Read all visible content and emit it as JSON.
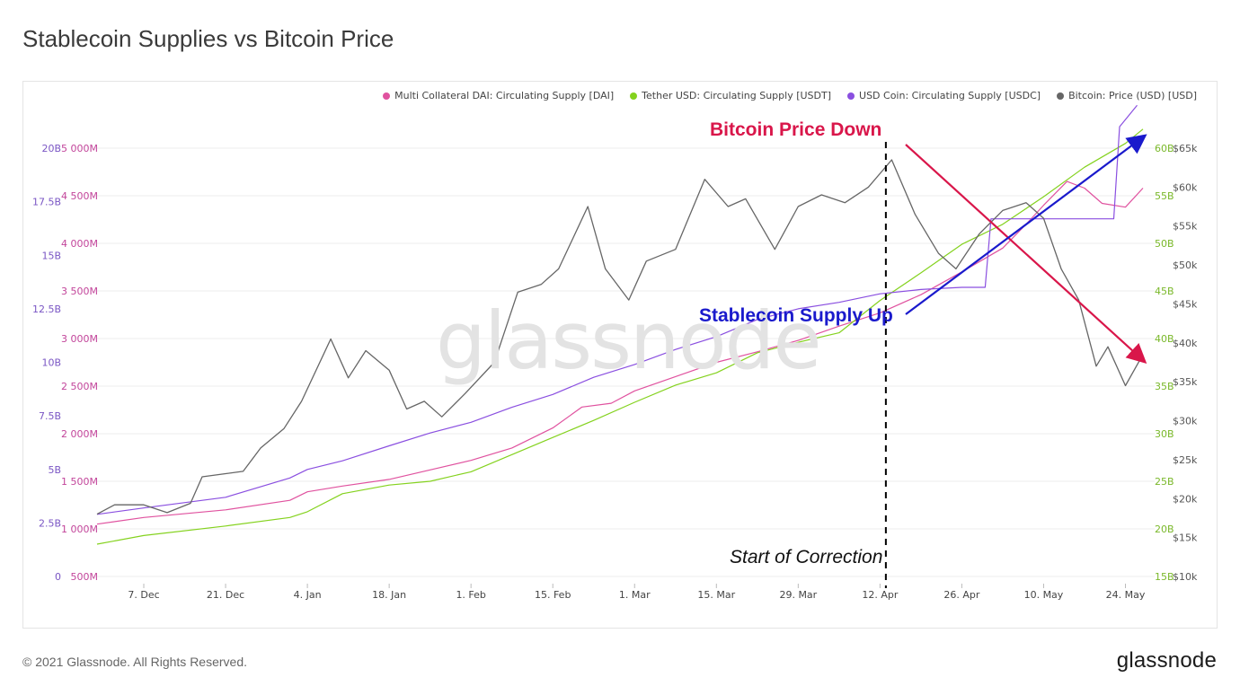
{
  "page": {
    "title": "Stablecoin Supplies vs Bitcoin Price",
    "copyright": "© 2021 Glassnode. All Rights Reserved.",
    "logo": "glassnode",
    "watermark": "glassnode"
  },
  "annotations": {
    "price_down": "Bitcoin Price Down",
    "supply_up": "Stablecoin Supply Up",
    "correction": "Start of Correction"
  },
  "chart_data": {
    "type": "line",
    "legend_placement": "top-right",
    "grid": true,
    "x_ticks": [
      "7. Dec",
      "21. Dec",
      "4. Jan",
      "18. Jan",
      "1. Feb",
      "15. Feb",
      "1. Mar",
      "15. Mar",
      "29. Mar",
      "12. Apr",
      "26. Apr",
      "10. May",
      "24. May"
    ],
    "x_range": [
      "2020-11-29",
      "2021-05-29"
    ],
    "axes": {
      "usdc": {
        "ticks": [
          "0",
          "2.5B",
          "5B",
          "7.5B",
          "10B",
          "12.5B",
          "15B",
          "17.5B",
          "20B"
        ],
        "range": [
          0,
          20
        ],
        "color": "#7a56c4"
      },
      "dai": {
        "ticks": [
          "500M",
          "1 000M",
          "1 500M",
          "2 000M",
          "2 500M",
          "3 000M",
          "3 500M",
          "4 000M",
          "4 500M",
          "5 000M"
        ],
        "range": [
          500,
          5000
        ],
        "color": "#c2449a"
      },
      "usdt": {
        "ticks": [
          "15B",
          "20B",
          "25B",
          "30B",
          "35B",
          "40B",
          "45B",
          "50B",
          "55B",
          "60B"
        ],
        "range": [
          15,
          60
        ],
        "color": "#7ab82a"
      },
      "btc": {
        "ticks": [
          "$10k",
          "$15k",
          "$20k",
          "$25k",
          "$30k",
          "$35k",
          "$40k",
          "$45k",
          "$50k",
          "$55k",
          "$60k",
          "$65k"
        ],
        "range": [
          10,
          65
        ],
        "color": "#555555"
      }
    },
    "series": [
      {
        "name": "Multi Collateral DAI: Circulating Supply [DAI]",
        "color": "#e0529f",
        "axis": "dai",
        "x": [
          "2020-11-29",
          "2020-12-07",
          "2020-12-21",
          "2021-01-01",
          "2021-01-04",
          "2021-01-10",
          "2021-01-18",
          "2021-01-25",
          "2021-02-01",
          "2021-02-08",
          "2021-02-15",
          "2021-02-20",
          "2021-02-25",
          "2021-03-01",
          "2021-03-08",
          "2021-03-15",
          "2021-03-22",
          "2021-03-29",
          "2021-04-05",
          "2021-04-12",
          "2021-04-19",
          "2021-04-26",
          "2021-05-03",
          "2021-05-07",
          "2021-05-10",
          "2021-05-14",
          "2021-05-17",
          "2021-05-20",
          "2021-05-24",
          "2021-05-27"
        ],
        "values": [
          1050,
          1120,
          1200,
          1300,
          1390,
          1450,
          1520,
          1620,
          1720,
          1850,
          2060,
          2280,
          2320,
          2450,
          2600,
          2750,
          2860,
          2980,
          3130,
          3270,
          3460,
          3700,
          3950,
          4200,
          4400,
          4650,
          4580,
          4420,
          4380,
          4580
        ]
      },
      {
        "name": "Tether USD: Circulating Supply [USDT]",
        "color": "#84d21e",
        "axis": "usdt",
        "x": [
          "2020-11-29",
          "2020-12-07",
          "2020-12-21",
          "2021-01-01",
          "2021-01-04",
          "2021-01-10",
          "2021-01-18",
          "2021-01-25",
          "2021-02-01",
          "2021-02-08",
          "2021-02-15",
          "2021-02-22",
          "2021-03-01",
          "2021-03-08",
          "2021-03-15",
          "2021-03-22",
          "2021-03-29",
          "2021-04-05",
          "2021-04-12",
          "2021-04-19",
          "2021-04-26",
          "2021-05-03",
          "2021-05-10",
          "2021-05-17",
          "2021-05-24",
          "2021-05-27"
        ],
        "values": [
          18.4,
          19.3,
          20.3,
          21.2,
          21.8,
          23.7,
          24.6,
          25.0,
          26.0,
          27.8,
          29.6,
          31.4,
          33.3,
          35.1,
          36.4,
          38.5,
          39.6,
          40.6,
          44.0,
          46.9,
          49.9,
          52.0,
          54.9,
          58.0,
          60.5,
          62.0
        ]
      },
      {
        "name": "USD Coin: Circulating Supply [USDC]",
        "color": "#8a4fe0",
        "axis": "usdc",
        "x": [
          "2020-11-29",
          "2020-12-07",
          "2020-12-21",
          "2021-01-01",
          "2021-01-04",
          "2021-01-10",
          "2021-01-18",
          "2021-01-25",
          "2021-02-01",
          "2021-02-08",
          "2021-02-15",
          "2021-02-22",
          "2021-03-01",
          "2021-03-08",
          "2021-03-15",
          "2021-03-22",
          "2021-03-29",
          "2021-04-05",
          "2021-04-12",
          "2021-04-19",
          "2021-04-26",
          "2021-04-30",
          "2021-05-01",
          "2021-05-10",
          "2021-05-17",
          "2021-05-22",
          "2021-05-23",
          "2021-05-26"
        ],
        "values": [
          2.9,
          3.2,
          3.7,
          4.6,
          5.0,
          5.4,
          6.1,
          6.7,
          7.2,
          7.9,
          8.5,
          9.3,
          9.9,
          10.6,
          11.2,
          12.0,
          12.5,
          12.8,
          13.2,
          13.4,
          13.5,
          13.5,
          16.7,
          16.7,
          16.7,
          16.7,
          21.0,
          22.0
        ]
      },
      {
        "name": "Bitcoin: Price (USD) [USD]",
        "color": "#666666",
        "axis": "btc",
        "x": [
          "2020-11-29",
          "2020-12-02",
          "2020-12-07",
          "2020-12-11",
          "2020-12-15",
          "2020-12-17",
          "2020-12-21",
          "2020-12-24",
          "2020-12-27",
          "2020-12-31",
          "2021-01-03",
          "2021-01-08",
          "2021-01-11",
          "2021-01-14",
          "2021-01-18",
          "2021-01-21",
          "2021-01-24",
          "2021-01-27",
          "2021-01-31",
          "2021-02-05",
          "2021-02-09",
          "2021-02-13",
          "2021-02-16",
          "2021-02-21",
          "2021-02-24",
          "2021-02-28",
          "2021-03-03",
          "2021-03-08",
          "2021-03-13",
          "2021-03-17",
          "2021-03-20",
          "2021-03-25",
          "2021-03-29",
          "2021-04-02",
          "2021-04-06",
          "2021-04-10",
          "2021-04-14",
          "2021-04-18",
          "2021-04-22",
          "2021-04-25",
          "2021-04-29",
          "2021-05-03",
          "2021-05-07",
          "2021-05-10",
          "2021-05-13",
          "2021-05-16",
          "2021-05-19",
          "2021-05-21",
          "2021-05-24",
          "2021-05-27"
        ],
        "values": [
          18.0,
          19.2,
          19.2,
          18.2,
          19.4,
          22.8,
          23.2,
          23.5,
          26.5,
          29.0,
          32.5,
          40.5,
          35.5,
          39.0,
          36.5,
          31.5,
          32.5,
          30.5,
          33.5,
          37.5,
          46.5,
          47.5,
          49.5,
          57.5,
          49.5,
          45.5,
          50.5,
          52.0,
          61.0,
          57.5,
          58.5,
          52.0,
          57.5,
          59.0,
          58.0,
          60.0,
          63.5,
          56.5,
          51.5,
          49.5,
          54.0,
          57.0,
          58.0,
          56.0,
          49.5,
          45.5,
          37.0,
          39.5,
          34.5,
          38.5
        ]
      }
    ]
  }
}
